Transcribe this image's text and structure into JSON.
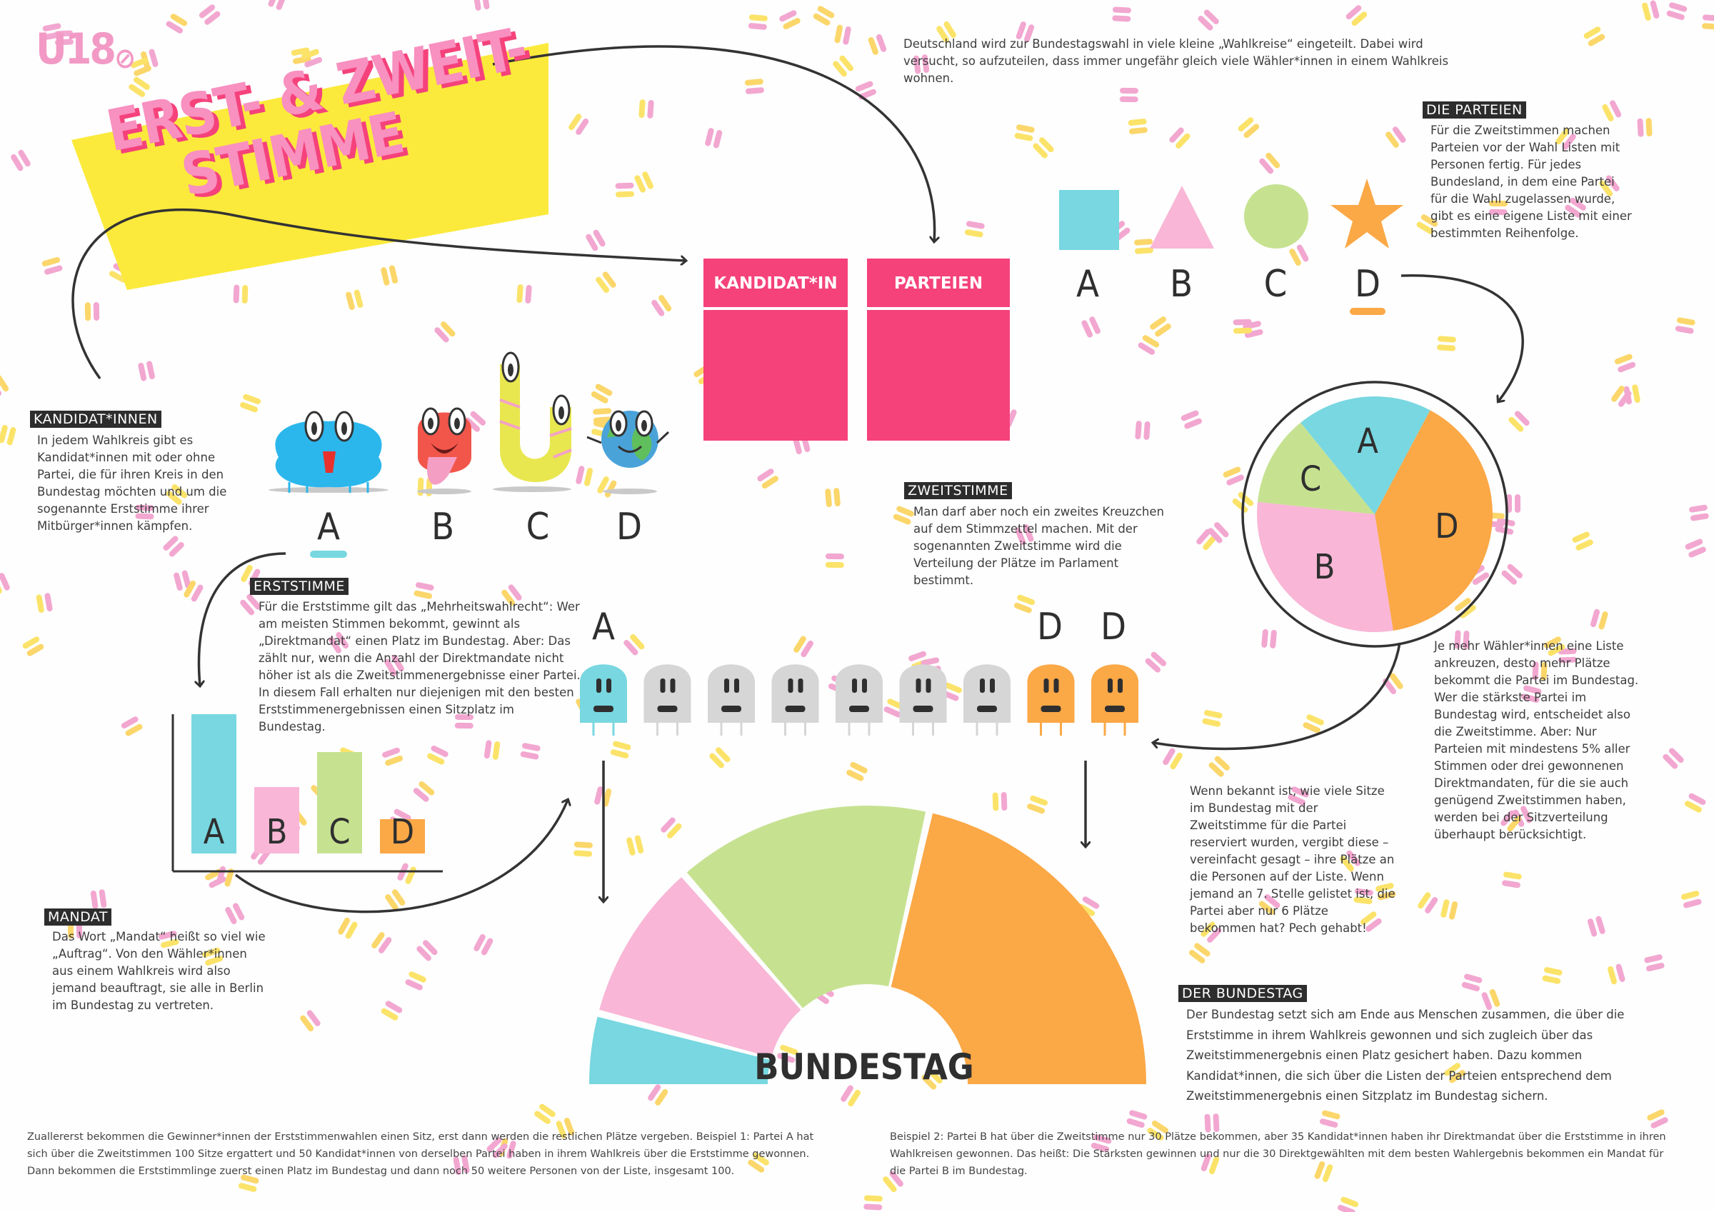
{
  "logo": "U18",
  "title": {
    "line1": "ERST- & ZWEIT-",
    "line2": "STIMME"
  },
  "intro": "Deutschland wird zur Bundestagswahl in viele kleine „Wahlkreise“ eingeteilt. Dabei wird versucht, so aufzuteilen, dass immer ungefähr gleich viele Wähler*innen in einem Wahlkreis wohnen.",
  "parteien": {
    "label": "DIE PARTEIEN",
    "text": "Für die Zweitstimmen machen Parteien vor der Wahl Listen mit Personen fertig. Für jedes Bundesland, in dem eine Partei für die Wahl zugelassen wurde, gibt es eine eigene Liste mit einer bestimmten Reihenfolge."
  },
  "kandidaten": {
    "label": "KANDIDAT*INNEN",
    "text": "In jedem Wahlkreis gibt es Kandidat*innen mit oder ohne Partei, die für ihren Kreis in den Bundestag möchten und um die sogenannte Erststimme ihrer Mitbürger*innen kämpfen."
  },
  "erststimme": {
    "label": "ERSTSTIMME",
    "text": "Für die Erststimme gilt das „Mehrheitswahlrecht“: Wer am meisten Stimmen bekommt, gewinnt als „Direktmandat“ einen Platz im Bundestag. Aber: Das zählt nur, wenn die Anzahl der Direktmandate nicht höher ist als die Zweitstimmenergebnisse einer Partei. In diesem Fall erhalten nur diejenigen mit den besten Erststimmenergebnissen einen Sitzplatz im Bundestag."
  },
  "zweitstimme": {
    "label": "ZWEITSTIMME",
    "text": "Man darf aber noch ein zweites Kreuzchen auf dem Stimmzettel machen. Mit der sogenannten Zweitstimme wird die Verteilung der Plätze im Parlament bestimmt."
  },
  "mandat": {
    "label": "MANDAT",
    "text": "Das Wort „Mandat“ heißt so viel wie „Auftrag“. Von den Wähler*innen aus einem Wahlkreis wird also jemand beauftragt, sie alle in Berlin im Bundestag zu vertreten."
  },
  "listen_text": "Je mehr Wähler*innen eine Liste ankreuzen, desto mehr Plätze bekommt die Partei im Bundestag. Wer die stärkste Partei im Bundestag wird, entscheidet also die Zweitstimme. Aber: Nur Parteien mit mindestens 5% aller Stimmen oder drei gewonnenen Direktmandaten, für die sie auch genügend Zweitstimmen haben, werden bei der Sitzverteilung überhaupt berücksichtigt.",
  "sitze_text": "Wenn bekannt ist, wie viele Sitze im Bundestag mit der Zweitstimme für die Partei reserviert wurden, vergibt diese – vereinfacht gesagt – ihre Plätze an die Personen auf der Liste. Wenn jemand an 7. Stelle gelistet ist, die Partei aber nur 6 Plätze bekommen hat? Pech gehabt!",
  "bundestag": {
    "label": "DER BUNDESTAG",
    "text": "Der Bundestag setzt sich am Ende aus Menschen zusammen, die über die Erststimme in ihrem Wahlkreis gewonnen und sich zugleich über das Zweitstimmenergebnis einen Platz gesichert haben. Dazu kommen Kandidat*innen, die sich über die Listen der Parteien entsprechend dem Zweitstimmenergebnis einen Sitzplatz im Bundestag sichern.",
    "arc_label": "BUNDESTAG"
  },
  "ballot": {
    "kandidat": "KANDIDAT*IN",
    "parteien": "PARTEIEN"
  },
  "letters": {
    "a": "A",
    "b": "B",
    "c": "C",
    "d": "D"
  },
  "footnote_left": "Zuallererst bekommen die Gewinner*innen der Erststimmenwahlen einen Sitz, erst dann werden die restlichen Plätze vergeben. Beispiel 1: Partei A hat sich über die Zweitstimmen 100 Sitze ergattert und 50 Kandidat*innen von derselben Partei haben in ihrem Wahlkreis über die Erststimme gewonnen. Dann bekommen die Erststimmlinge zuerst einen Platz im Bundestag und dann noch 50 weitere Personen von der Liste, insgesamt 100.",
  "footnote_right": "Beispiel 2: Partei B hat über die Zweitstimme nur 30 Plätze bekommen, aber 35 Kandidat*innen haben ihr Direktmandat über die Erststimme in ihren Wahlkreisen gewonnen. Das heißt: Die Stärksten gewinnen und nur die 30 Direktgewählten mit dem besten Wahlergebnis bekommen ein Mandat für die Partei B im Bundestag.",
  "colors": {
    "a": "#78d7e0",
    "b": "#f9b6d6",
    "c": "#c6e291",
    "d": "#fba846",
    "pink": "#f5427b",
    "yellow": "#fbea3b"
  }
}
